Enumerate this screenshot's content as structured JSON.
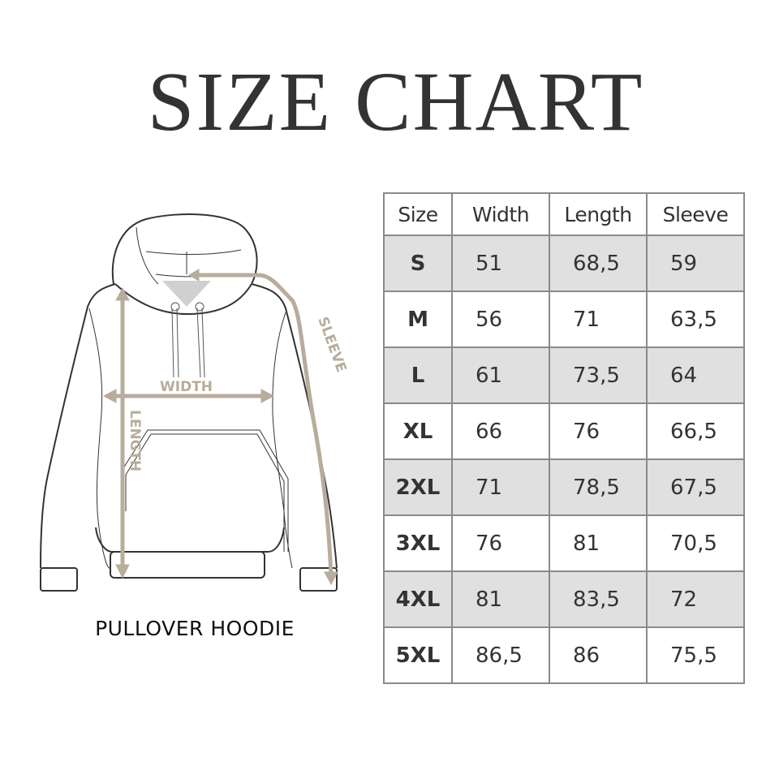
{
  "title": "SIZE CHART",
  "garment": {
    "caption": "PULLOVER HOODIE",
    "labels": {
      "width": "WIDTH",
      "length": "LENGTH",
      "sleeve": "SLEEVE"
    },
    "measure_color": "#b8ac9c"
  },
  "table": {
    "headers": [
      "Size",
      "Width",
      "Length",
      "Sleeve"
    ],
    "rows": [
      [
        "S",
        "51",
        "68,5",
        "59"
      ],
      [
        "M",
        "56",
        "71",
        "63,5"
      ],
      [
        "L",
        "61",
        "73,5",
        "64"
      ],
      [
        "XL",
        "66",
        "76",
        "66,5"
      ],
      [
        "2XL",
        "71",
        "78,5",
        "67,5"
      ],
      [
        "3XL",
        "76",
        "81",
        "70,5"
      ],
      [
        "4XL",
        "81",
        "83,5",
        "72"
      ],
      [
        "5XL",
        "86,5",
        "86",
        "75,5"
      ]
    ],
    "shade_color": "#e0e0e0"
  }
}
